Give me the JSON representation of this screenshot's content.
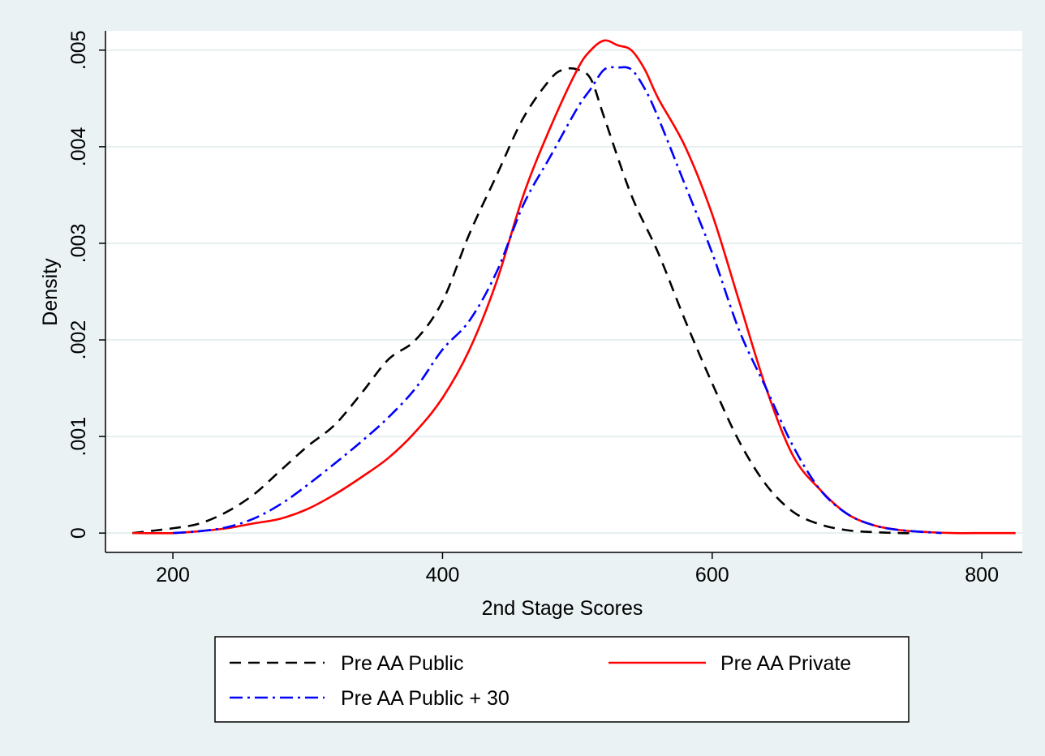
{
  "chart_data": {
    "type": "line",
    "title": "",
    "xlabel": "2nd Stage Scores",
    "ylabel": "Density",
    "xlim": [
      150,
      830
    ],
    "ylim": [
      -0.0002,
      0.0052
    ],
    "xticks": [
      200,
      400,
      600,
      800
    ],
    "xtick_labels": [
      "200",
      "400",
      "600",
      "800"
    ],
    "yticks": [
      0,
      0.001,
      0.002,
      0.003,
      0.004,
      0.005
    ],
    "ytick_labels": [
      "0",
      ".001",
      ".002",
      ".003",
      ".004",
      ".005"
    ],
    "grid": true,
    "legend_position": "bottom",
    "series": [
      {
        "name": "Pre AA Public",
        "color": "#000000",
        "dash": "dashed",
        "x": [
          170,
          200,
          220,
          240,
          260,
          280,
          300,
          320,
          340,
          360,
          380,
          400,
          420,
          440,
          460,
          480,
          490,
          500,
          510,
          520,
          540,
          560,
          580,
          600,
          620,
          640,
          660,
          680,
          700,
          720,
          740,
          750
        ],
        "y": [
          0.0,
          5e-05,
          0.0001,
          0.00022,
          0.0004,
          0.00065,
          0.0009,
          0.00112,
          0.00145,
          0.0018,
          0.002,
          0.0024,
          0.0031,
          0.0037,
          0.0043,
          0.0047,
          0.0048,
          0.0048,
          0.0047,
          0.0043,
          0.0035,
          0.0029,
          0.0022,
          0.00155,
          0.00095,
          0.0005,
          0.00022,
          9e-05,
          3e-05,
          1e-05,
          0.0,
          0.0
        ]
      },
      {
        "name": "Pre AA Private",
        "color": "#ff0000",
        "dash": "solid",
        "x": [
          170,
          200,
          220,
          240,
          260,
          280,
          300,
          320,
          340,
          360,
          380,
          400,
          420,
          440,
          460,
          480,
          500,
          510,
          520,
          530,
          540,
          550,
          560,
          580,
          600,
          620,
          640,
          660,
          680,
          700,
          720,
          740,
          760,
          780,
          800,
          825
        ],
        "y": [
          0.0,
          0.0,
          2e-05,
          5e-05,
          0.0001,
          0.00015,
          0.00025,
          0.0004,
          0.00058,
          0.00078,
          0.00105,
          0.0014,
          0.0019,
          0.0026,
          0.0035,
          0.0042,
          0.0048,
          0.005,
          0.0051,
          0.00505,
          0.005,
          0.0048,
          0.0045,
          0.004,
          0.0033,
          0.0024,
          0.0015,
          0.0008,
          0.00045,
          0.0002,
          8e-05,
          3e-05,
          1e-05,
          0.0,
          0.0,
          0.0
        ]
      },
      {
        "name": "Pre AA Public + 30",
        "color": "#0000ff",
        "dash": "dash-dot",
        "x": [
          200,
          220,
          240,
          260,
          280,
          300,
          320,
          340,
          360,
          380,
          400,
          420,
          440,
          460,
          480,
          500,
          510,
          520,
          530,
          540,
          550,
          560,
          580,
          600,
          620,
          640,
          660,
          680,
          700,
          720,
          740,
          770
        ],
        "y": [
          0.0,
          2e-05,
          6e-05,
          0.00015,
          0.0003,
          0.0005,
          0.00072,
          0.00095,
          0.0012,
          0.0015,
          0.0019,
          0.0022,
          0.0027,
          0.0034,
          0.0039,
          0.0044,
          0.0046,
          0.0048,
          0.00482,
          0.0048,
          0.0046,
          0.0043,
          0.0036,
          0.0029,
          0.0021,
          0.0015,
          0.0009,
          0.00045,
          0.0002,
          8e-05,
          3e-05,
          0.0
        ]
      }
    ]
  }
}
